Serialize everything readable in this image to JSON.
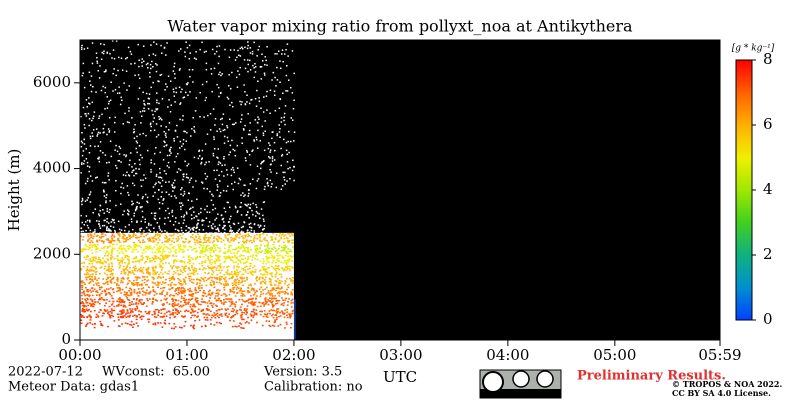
{
  "chart_data": {
    "type": "heatmap",
    "title": "Water vapor mixing ratio from pollyxt_noa at Antikythera",
    "y_label": "Height (m)",
    "x_label": "UTC",
    "xlim": [
      0,
      5.9833
    ],
    "xticks": [
      {
        "value": 0,
        "label": "00:00"
      },
      {
        "value": 1,
        "label": "01:00"
      },
      {
        "value": 2,
        "label": "02:00"
      },
      {
        "value": 3,
        "label": "03:00"
      },
      {
        "value": 4,
        "label": "04:00"
      },
      {
        "value": 5,
        "label": "05:00"
      },
      {
        "value": 5.9833,
        "label": "05:59"
      }
    ],
    "ylim": [
      0,
      7000
    ],
    "yticks": [
      0,
      2000,
      4000,
      6000
    ],
    "x_bins": [
      0,
      0.3333,
      0.6667,
      1,
      1.3333,
      1.6667,
      2
    ],
    "y_bins": [
      250,
      500,
      750,
      1000,
      1250,
      1500,
      1750,
      2000,
      2250,
      2500
    ],
    "z": [
      [
        7.5,
        7.5,
        7.5,
        7.5,
        7.3,
        7.2
      ],
      [
        7.4,
        7.4,
        7.3,
        7.2,
        7.2,
        7.0
      ],
      [
        7.2,
        7.2,
        7.0,
        7.0,
        7.0,
        7.0
      ],
      [
        7.0,
        6.8,
        6.8,
        6.8,
        6.6,
        6.5
      ],
      [
        6.5,
        6.5,
        6.3,
        6.3,
        6.2,
        6.0
      ],
      [
        6.0,
        6.0,
        5.8,
        5.8,
        5.6,
        5.5
      ],
      [
        5.6,
        5.5,
        5.5,
        5.3,
        5.2,
        5.0
      ],
      [
        5.2,
        5.0,
        5.0,
        4.8,
        4.8,
        4.5
      ],
      [
        6.5,
        6.3,
        6.0,
        6.0,
        6.0,
        5.8
      ]
    ],
    "colorbar": {
      "label": "[g * kg⁻¹]",
      "lim": [
        0,
        8
      ],
      "ticks": [
        0,
        2,
        4,
        6,
        8
      ],
      "colors": [
        "#0040ff",
        "#0090d0",
        "#10b080",
        "#40d020",
        "#a0e800",
        "#f0f000",
        "#ffb000",
        "#ff6000",
        "#ff0000"
      ]
    },
    "footer": {
      "date": "2022-07-12",
      "wvconst": "WVconst:  65.00",
      "meteor": "Meteor Data: gdas1",
      "version": "Version: 3.5",
      "calibration": "Calibration: no",
      "preliminary": "Preliminary Results.",
      "copyright": "© TROPOS & NOA 2022.",
      "license": "CC BY SA 4.0 License."
    }
  }
}
